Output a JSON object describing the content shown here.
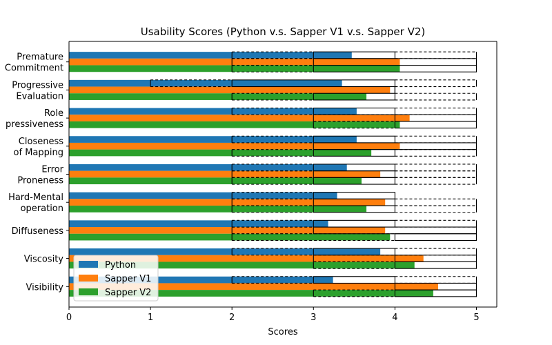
{
  "chart_data": {
    "type": "bar",
    "orientation": "horizontal",
    "title": "Usability Scores (Python v.s. Sapper V1 v.s. Sapper V2)",
    "xlabel": "Scores",
    "ylabel": "",
    "xlim": [
      0,
      5.25
    ],
    "xticks": [
      "0",
      "1",
      "2",
      "3",
      "4",
      "5"
    ],
    "categories": [
      "Premature\nCommitment",
      "Progressive\nEvaluation",
      "Role\npressiveness",
      "Closeness\nof Mapping",
      "Error\nProneness",
      "Hard-Mental\noperation",
      "Diffuseness",
      "Viscosity",
      "Visibility"
    ],
    "series": [
      {
        "name": "Python",
        "color": "#1f77b4",
        "values": [
          3.47,
          3.35,
          3.53,
          3.53,
          3.41,
          3.29,
          3.18,
          3.82,
          3.24
        ],
        "box": [
          [
            3,
            4
          ],
          [
            2,
            4
          ],
          [
            3,
            4
          ],
          [
            3,
            4
          ],
          [
            3,
            4
          ],
          [
            3,
            4
          ],
          [
            3,
            4
          ],
          [
            3,
            4
          ],
          [
            3,
            4
          ]
        ],
        "whisker": [
          [
            2,
            5
          ],
          [
            1,
            5
          ],
          [
            2,
            5
          ],
          [
            2,
            5
          ],
          [
            2,
            5
          ],
          [
            2,
            4
          ],
          [
            2,
            5
          ],
          [
            2,
            5
          ],
          [
            2,
            5
          ]
        ]
      },
      {
        "name": "Sapper V1",
        "color": "#ff7f0e",
        "values": [
          4.06,
          3.94,
          4.18,
          4.06,
          3.82,
          3.88,
          3.88,
          4.35,
          4.53
        ],
        "box": [
          [
            3,
            5
          ],
          [
            4,
            4
          ],
          [
            4,
            5
          ],
          [
            3,
            5
          ],
          [
            3,
            4
          ],
          [
            3,
            4
          ],
          [
            3,
            5
          ],
          [
            4,
            5
          ],
          [
            4,
            5
          ]
        ],
        "whisker": [
          [
            2,
            5
          ],
          [
            4,
            4
          ],
          [
            3,
            5
          ],
          [
            3,
            5
          ],
          [
            2,
            5
          ],
          [
            2,
            5
          ],
          [
            2,
            5
          ],
          [
            3,
            5
          ],
          [
            4,
            5
          ]
        ]
      },
      {
        "name": "Sapper V2",
        "color": "#2ca02c",
        "values": [
          4.06,
          3.65,
          4.06,
          3.71,
          3.59,
          3.65,
          3.94,
          4.24,
          4.47
        ],
        "box": [
          [
            3,
            5
          ],
          [
            3,
            4
          ],
          [
            4,
            5
          ],
          [
            3,
            4
          ],
          [
            3,
            4
          ],
          [
            3,
            4
          ],
          [
            4,
            5
          ],
          [
            4,
            5
          ],
          [
            4,
            5
          ]
        ],
        "whisker": [
          [
            2,
            5
          ],
          [
            2,
            5
          ],
          [
            3,
            5
          ],
          [
            2,
            5
          ],
          [
            2,
            5
          ],
          [
            2,
            5
          ],
          [
            2,
            5
          ],
          [
            3,
            5
          ],
          [
            3,
            5
          ]
        ]
      }
    ],
    "legend": {
      "position": "lower-left",
      "entries": [
        "Python",
        "Sapper V1",
        "Sapper V2"
      ]
    }
  }
}
